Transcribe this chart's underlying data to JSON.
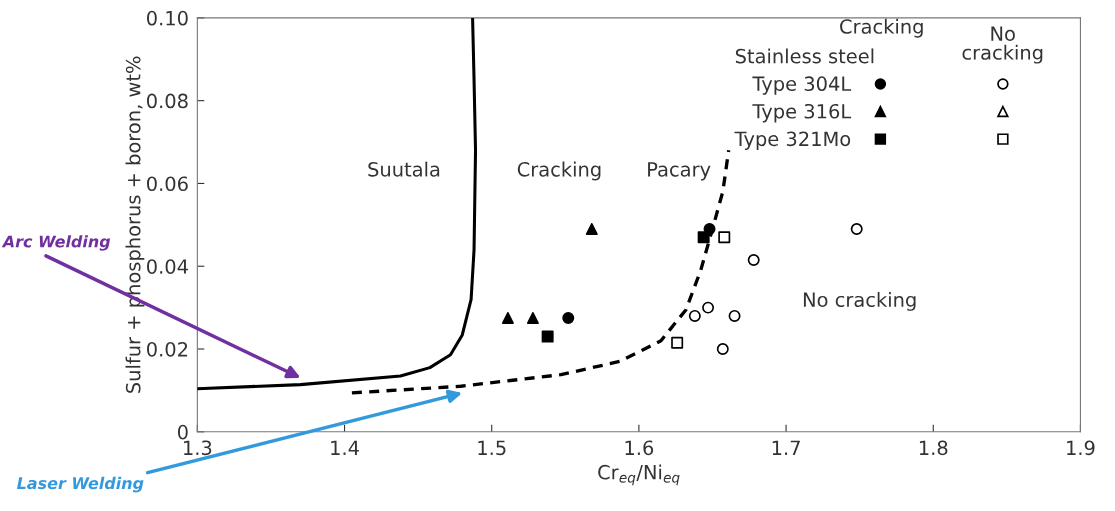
{
  "chart_data": {
    "type": "scatter",
    "xlabel": "Cr$_{eq}$/Ni$_{eq}$",
    "ylabel": "Sulfur + phosphorus + boron, wt%",
    "legend_title": "Stainless steel",
    "xlim": [
      1.3,
      1.9
    ],
    "xticks": [
      1.3,
      1.4,
      1.5,
      1.6,
      1.7,
      1.8,
      1.9
    ],
    "ylim": [
      0,
      0.1
    ],
    "yticks": [
      0,
      0.02,
      0.04,
      0.06,
      0.08,
      {
        "value": 0.1,
        "label": "0.10"
      }
    ],
    "grid": false,
    "legend": "top right",
    "series": [
      {
        "name": "Type 304L",
        "marker": "circle",
        "color": "#000000",
        "x": [
          1.552,
          1.648
        ],
        "values": [
          0.0275,
          0.049
        ]
      },
      {
        "name": "Type 316L",
        "marker": "triangle",
        "color": "#000000",
        "x": [
          1.511,
          1.528,
          1.568
        ],
        "values": [
          0.0275,
          0.0275,
          0.049
        ]
      },
      {
        "name": "Type 321Mo",
        "marker": "square",
        "color": "#000000",
        "x": [
          1.538,
          1.644
        ],
        "values": [
          0.023,
          0.047
        ]
      },
      {
        "marker": "circle",
        "color": "#ffffff",
        "x": [
          1.748,
          1.678,
          1.647,
          1.638,
          1.665,
          1.657
        ],
        "values": [
          0.049,
          0.0415,
          0.03,
          0.028,
          0.028,
          0.02
        ]
      },
      {
        "marker": "triangle",
        "color": "#ffffff"
      },
      {
        "marker": "square",
        "color": "#ffffff",
        "x": [
          1.658,
          1.626
        ],
        "values": [
          0.047,
          0.0215
        ]
      },
      {
        "type": "line",
        "line_style": "solid",
        "color": "#000000",
        "x": [
          1.3,
          1.37,
          1.438,
          1.458,
          1.472,
          1.48,
          1.486,
          1.488,
          1.489,
          1.488,
          1.487
        ],
        "values": [
          0.0104,
          0.0114,
          0.0135,
          0.0155,
          0.0186,
          0.0234,
          0.032,
          0.044,
          0.068,
          0.085,
          0.1
        ]
      },
      {
        "type": "line",
        "line_style": "dashed",
        "color": "#000000",
        "x": [
          1.405,
          1.479,
          1.547,
          1.587,
          1.615,
          1.632,
          1.642,
          1.65,
          1.657,
          1.661
        ],
        "values": [
          0.0094,
          0.011,
          0.0138,
          0.017,
          0.022,
          0.0295,
          0.039,
          0.049,
          0.058,
          0.068
        ]
      }
    ],
    "annotations": [
      "Suutala",
      "Cracking",
      "Pacary",
      "No cracking",
      "Cracking",
      "No\ncracking",
      "Arc Welding",
      "Laser Welding"
    ]
  }
}
